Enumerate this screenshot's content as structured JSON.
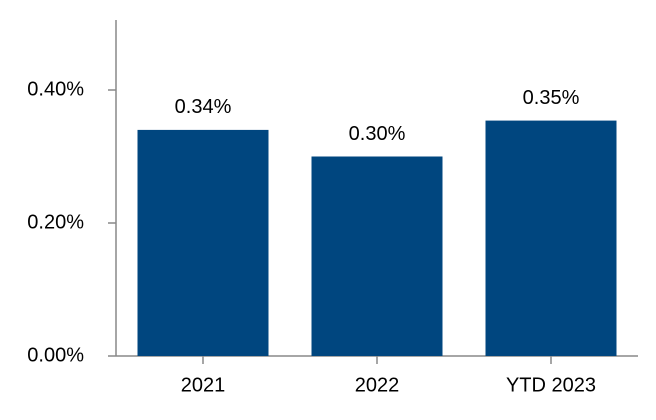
{
  "chart_data": {
    "type": "bar",
    "categories": [
      "2021",
      "2022",
      "YTD 2023"
    ],
    "values": [
      0.34,
      0.3,
      0.354
    ],
    "value_labels": [
      "0.34%",
      "0.30%",
      "0.35%"
    ],
    "color": "#00467f",
    "ylim": [
      0,
      0.5
    ],
    "yticks": [
      {
        "value": 0,
        "label": "0.00%"
      },
      {
        "value": 0.2,
        "label": "0.20%"
      },
      {
        "value": 0.4,
        "label": "0.40%"
      }
    ],
    "grid": false
  }
}
